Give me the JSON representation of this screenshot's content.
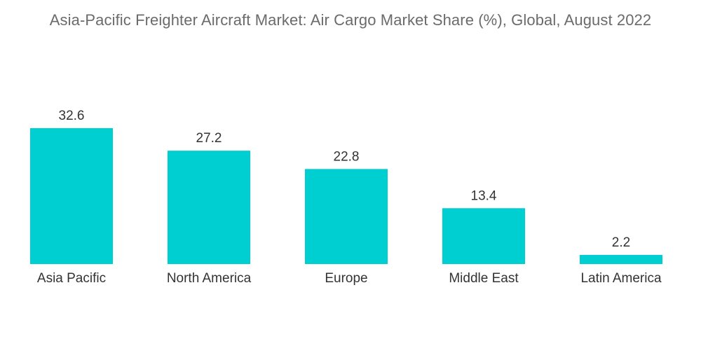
{
  "chart_data": {
    "type": "bar",
    "title": "Asia-Pacific Freighter Aircraft Market: Air Cargo Market Share (%), Global, August 2022",
    "categories": [
      "Asia Pacific",
      "North America",
      "Europe",
      "Middle East",
      "Latin America"
    ],
    "values": [
      32.6,
      27.2,
      22.8,
      13.4,
      2.2
    ],
    "value_labels": [
      "32.6",
      "27.2",
      "22.8",
      "13.4",
      "2.2"
    ],
    "xlabel": "",
    "ylabel": "",
    "ylim": [
      0,
      32.6
    ],
    "grid": false,
    "legend": "none",
    "bar_color": "#00cfd1"
  }
}
